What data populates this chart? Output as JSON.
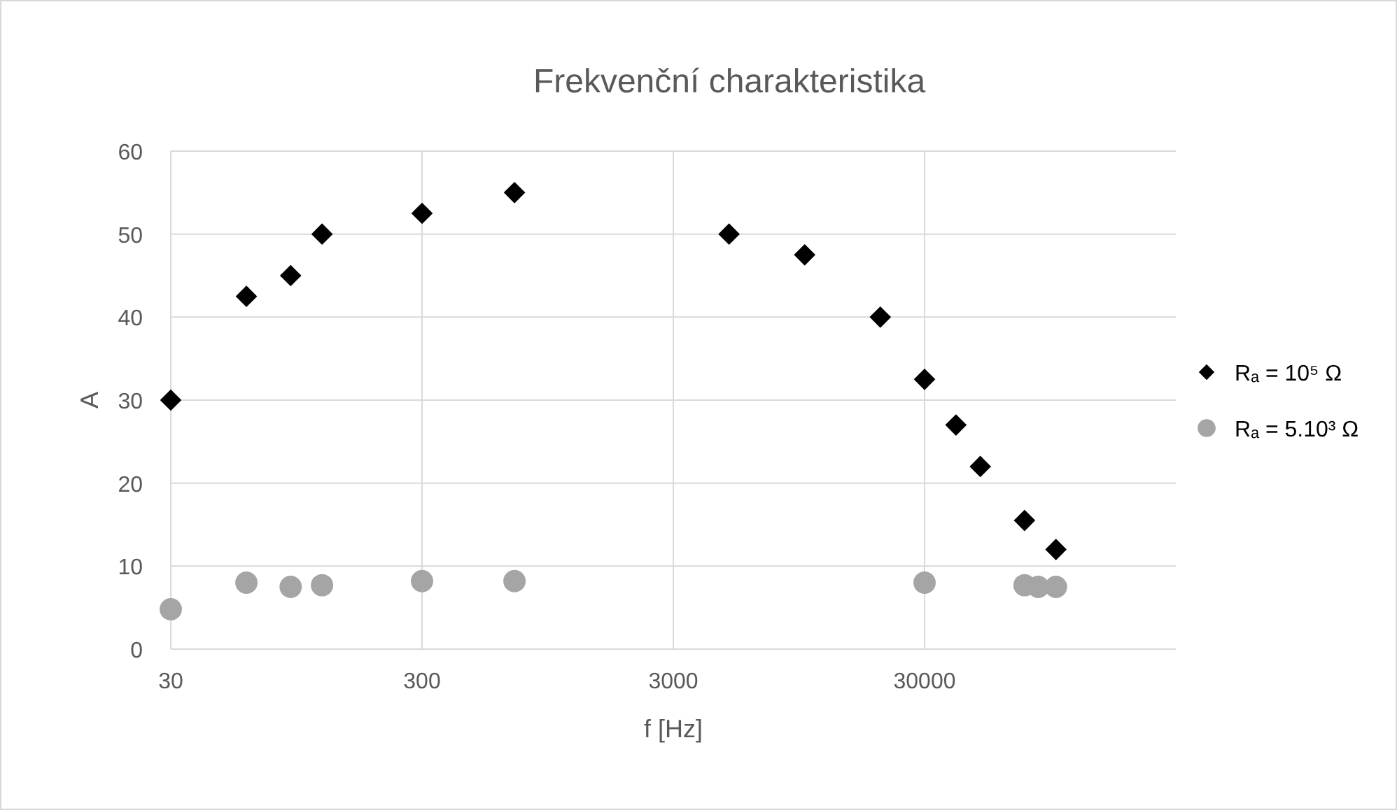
{
  "chart_data": {
    "type": "scatter",
    "title": "Frekvenční charakteristika",
    "xlabel": "f [Hz]",
    "ylabel": "A",
    "log": "x",
    "xlim": [
      30,
      300000
    ],
    "xticks": [
      30,
      300,
      3000,
      30000
    ],
    "ylim": [
      0,
      60
    ],
    "yticks": [
      0,
      10,
      20,
      30,
      40,
      50,
      60
    ],
    "grid": true,
    "legend": "right",
    "series": [
      {
        "name": "Rₐ = 10⁵ Ω",
        "color": "#000000",
        "marker": "diamond",
        "x": [
          30,
          60,
          90,
          120,
          300,
          700,
          5000,
          10000,
          20000,
          30000,
          40000,
          50000,
          75000,
          100000
        ],
        "values": [
          30,
          42.5,
          45,
          50,
          52.5,
          55,
          50,
          47.5,
          40,
          32.5,
          27,
          22,
          15.5,
          12
        ]
      },
      {
        "name": "Rₐ = 5.10³ Ω",
        "color": "#a5a5a5",
        "marker": "circle",
        "x": [
          30,
          60,
          90,
          120,
          300,
          700,
          30000,
          75000,
          85000,
          100000
        ],
        "values": [
          4.8,
          8,
          7.5,
          7.7,
          8.2,
          8.2,
          8,
          7.7,
          7.5,
          7.5
        ]
      }
    ]
  }
}
